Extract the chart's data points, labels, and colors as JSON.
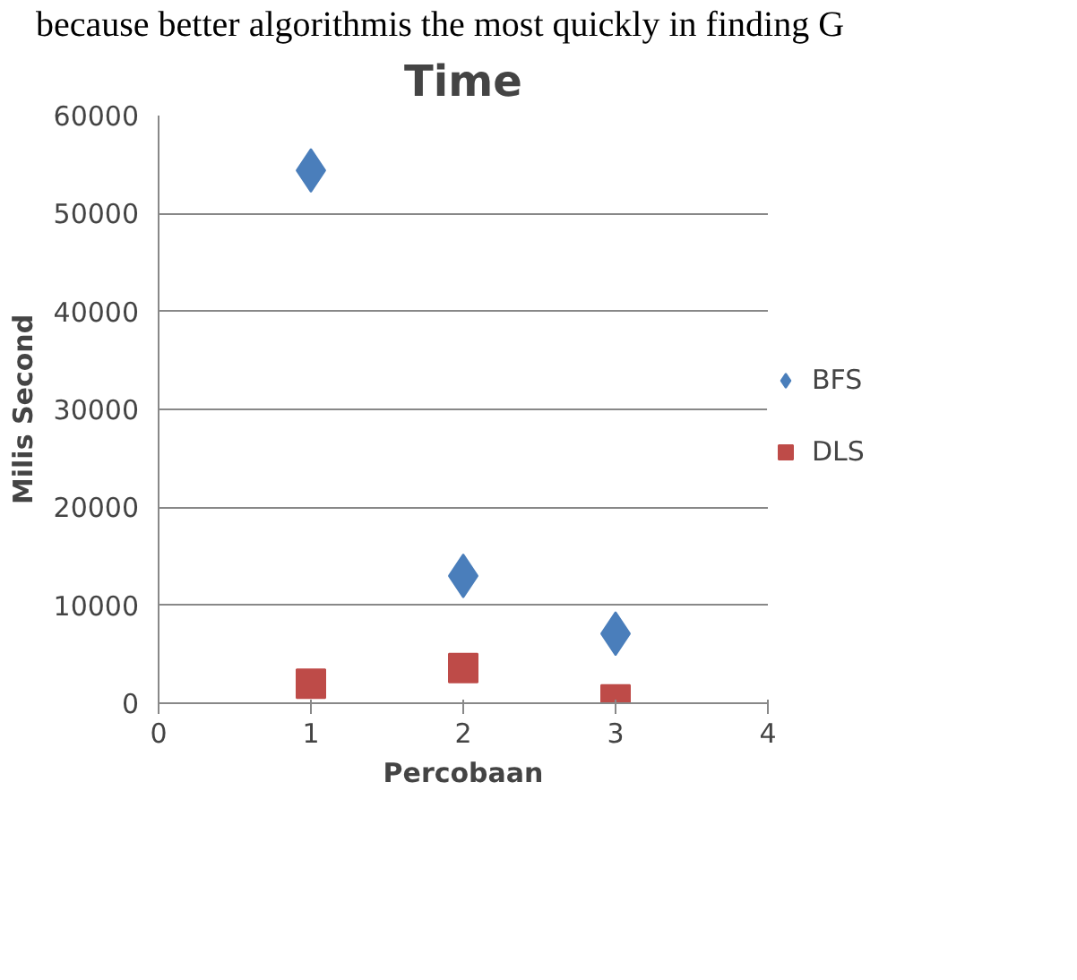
{
  "chart_data": {
    "type": "scatter",
    "title": "Time",
    "xlabel": "Percobaan",
    "ylabel": "Milis Second",
    "annotations": [
      "because better algorithmis the most quickly in finding G"
    ],
    "x": [
      1,
      2,
      3
    ],
    "series": [
      {
        "name": "BFS",
        "color": "#4a7ebb",
        "marker": "diamond",
        "values": [
          54400,
          13000,
          7100
        ]
      },
      {
        "name": "DLS",
        "color": "#be4b48",
        "marker": "square",
        "values": [
          2000,
          3600,
          400
        ]
      }
    ],
    "xlim": [
      0,
      4
    ],
    "xticks": [
      0,
      1,
      2,
      3,
      4
    ],
    "ylim": [
      0,
      60000
    ],
    "yticks": [
      0,
      10000,
      20000,
      30000,
      40000,
      50000,
      60000
    ],
    "grid": "y",
    "legend": "right"
  }
}
